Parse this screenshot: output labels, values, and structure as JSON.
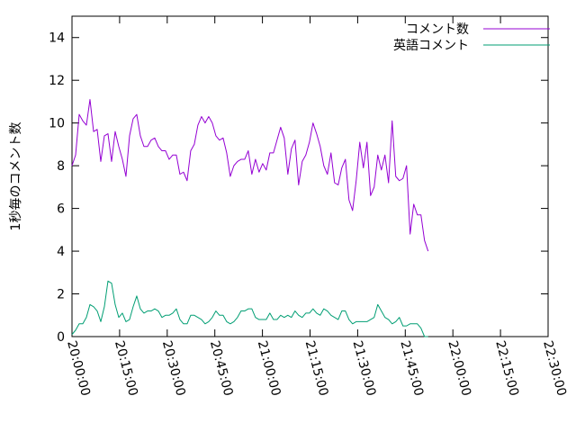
{
  "chart_data": {
    "type": "line",
    "title": "",
    "xlabel": "",
    "ylabel": "1秒毎のコメント数",
    "x_axis": {
      "type": "time",
      "range": [
        "20:00:00",
        "22:30:00"
      ],
      "ticks": [
        "20:00:00",
        "20:15:00",
        "20:30:00",
        "20:45:00",
        "21:00:00",
        "21:15:00",
        "21:30:00",
        "21:45:00",
        "22:00:00",
        "22:15:00",
        "22:30:00"
      ]
    },
    "y_axis": {
      "range": [
        0,
        15
      ],
      "ticks": [
        "0",
        "2",
        "4",
        "6",
        "8",
        "10",
        "12",
        "14"
      ]
    },
    "grid": false,
    "legend": {
      "position": "top-right"
    },
    "series": [
      {
        "name": "コメント数",
        "color": "#9400d3",
        "points": [
          [
            "20:00:00",
            8.0
          ],
          [
            "20:01:08",
            8.5
          ],
          [
            "20:02:16",
            10.4
          ],
          [
            "20:03:24",
            10.1
          ],
          [
            "20:04:32",
            9.9
          ],
          [
            "20:05:40",
            11.1
          ],
          [
            "20:06:48",
            9.6
          ],
          [
            "20:07:56",
            9.7
          ],
          [
            "20:09:04",
            8.2
          ],
          [
            "20:10:12",
            9.4
          ],
          [
            "20:11:20",
            9.5
          ],
          [
            "20:12:28",
            8.2
          ],
          [
            "20:13:36",
            9.6
          ],
          [
            "20:14:44",
            8.9
          ],
          [
            "20:15:52",
            8.3
          ],
          [
            "20:17:00",
            7.5
          ],
          [
            "20:18:08",
            9.4
          ],
          [
            "20:19:16",
            10.2
          ],
          [
            "20:20:24",
            10.4
          ],
          [
            "20:21:32",
            9.4
          ],
          [
            "20:22:40",
            8.9
          ],
          [
            "20:23:48",
            8.9
          ],
          [
            "20:24:56",
            9.2
          ],
          [
            "20:26:04",
            9.3
          ],
          [
            "20:27:12",
            8.9
          ],
          [
            "20:28:20",
            8.7
          ],
          [
            "20:29:28",
            8.7
          ],
          [
            "20:30:36",
            8.3
          ],
          [
            "20:31:44",
            8.5
          ],
          [
            "20:32:52",
            8.5
          ],
          [
            "20:34:00",
            7.6
          ],
          [
            "20:35:08",
            7.7
          ],
          [
            "20:36:16",
            7.3
          ],
          [
            "20:37:24",
            8.7
          ],
          [
            "20:38:32",
            9.0
          ],
          [
            "20:39:40",
            9.9
          ],
          [
            "20:40:48",
            10.3
          ],
          [
            "20:41:56",
            10.0
          ],
          [
            "20:43:04",
            10.3
          ],
          [
            "20:44:12",
            10.0
          ],
          [
            "20:45:20",
            9.4
          ],
          [
            "20:46:28",
            9.2
          ],
          [
            "20:47:36",
            9.3
          ],
          [
            "20:48:44",
            8.6
          ],
          [
            "20:49:52",
            7.5
          ],
          [
            "20:51:00",
            8.0
          ],
          [
            "20:52:08",
            8.2
          ],
          [
            "20:53:16",
            8.3
          ],
          [
            "20:54:24",
            8.3
          ],
          [
            "20:55:32",
            8.7
          ],
          [
            "20:56:40",
            7.6
          ],
          [
            "20:57:48",
            8.3
          ],
          [
            "20:58:56",
            7.7
          ],
          [
            "21:00:04",
            8.1
          ],
          [
            "21:01:12",
            7.8
          ],
          [
            "21:02:20",
            8.6
          ],
          [
            "21:03:28",
            8.6
          ],
          [
            "21:04:36",
            9.2
          ],
          [
            "21:05:44",
            9.8
          ],
          [
            "21:06:52",
            9.3
          ],
          [
            "21:08:00",
            7.6
          ],
          [
            "21:09:08",
            8.8
          ],
          [
            "21:10:16",
            9.2
          ],
          [
            "21:11:24",
            7.1
          ],
          [
            "21:12:32",
            8.2
          ],
          [
            "21:13:40",
            8.5
          ],
          [
            "21:14:48",
            9.1
          ],
          [
            "21:15:56",
            10.0
          ],
          [
            "21:17:04",
            9.5
          ],
          [
            "21:18:12",
            8.9
          ],
          [
            "21:19:20",
            8.0
          ],
          [
            "21:20:28",
            7.6
          ],
          [
            "21:21:36",
            8.6
          ],
          [
            "21:22:44",
            7.2
          ],
          [
            "21:23:52",
            7.1
          ],
          [
            "21:25:00",
            7.9
          ],
          [
            "21:26:08",
            8.3
          ],
          [
            "21:27:16",
            6.4
          ],
          [
            "21:28:24",
            5.9
          ],
          [
            "21:29:32",
            7.3
          ],
          [
            "21:30:40",
            9.1
          ],
          [
            "21:31:48",
            7.9
          ],
          [
            "21:32:56",
            9.1
          ],
          [
            "21:34:04",
            6.6
          ],
          [
            "21:35:12",
            7.0
          ],
          [
            "21:36:20",
            8.5
          ],
          [
            "21:37:28",
            7.8
          ],
          [
            "21:38:36",
            8.5
          ],
          [
            "21:39:44",
            7.2
          ],
          [
            "21:40:52",
            10.1
          ],
          [
            "21:42:00",
            7.5
          ],
          [
            "21:43:08",
            7.3
          ],
          [
            "21:44:16",
            7.4
          ],
          [
            "21:45:24",
            8.0
          ],
          [
            "21:46:32",
            4.8
          ],
          [
            "21:47:40",
            6.2
          ],
          [
            "21:48:48",
            5.7
          ],
          [
            "21:49:56",
            5.7
          ],
          [
            "21:51:04",
            4.5
          ],
          [
            "21:52:12",
            4.0
          ]
        ]
      },
      {
        "name": "英語コメント",
        "color": "#009e73",
        "points": [
          [
            "20:00:00",
            0.1
          ],
          [
            "20:01:08",
            0.3
          ],
          [
            "20:02:16",
            0.6
          ],
          [
            "20:03:24",
            0.6
          ],
          [
            "20:04:32",
            0.9
          ],
          [
            "20:05:40",
            1.5
          ],
          [
            "20:06:48",
            1.4
          ],
          [
            "20:07:56",
            1.2
          ],
          [
            "20:09:04",
            0.7
          ],
          [
            "20:10:12",
            1.4
          ],
          [
            "20:11:20",
            2.6
          ],
          [
            "20:12:28",
            2.5
          ],
          [
            "20:13:36",
            1.5
          ],
          [
            "20:14:44",
            0.9
          ],
          [
            "20:15:52",
            1.1
          ],
          [
            "20:17:00",
            0.7
          ],
          [
            "20:18:08",
            0.8
          ],
          [
            "20:19:16",
            1.4
          ],
          [
            "20:20:24",
            1.9
          ],
          [
            "20:21:32",
            1.3
          ],
          [
            "20:22:40",
            1.1
          ],
          [
            "20:23:48",
            1.2
          ],
          [
            "20:24:56",
            1.2
          ],
          [
            "20:26:04",
            1.3
          ],
          [
            "20:27:12",
            1.2
          ],
          [
            "20:28:20",
            0.9
          ],
          [
            "20:29:28",
            1.0
          ],
          [
            "20:30:36",
            1.0
          ],
          [
            "20:31:44",
            1.1
          ],
          [
            "20:32:52",
            1.3
          ],
          [
            "20:34:00",
            0.8
          ],
          [
            "20:35:08",
            0.6
          ],
          [
            "20:36:16",
            0.6
          ],
          [
            "20:37:24",
            1.0
          ],
          [
            "20:38:32",
            1.0
          ],
          [
            "20:39:40",
            0.9
          ],
          [
            "20:40:48",
            0.8
          ],
          [
            "20:41:56",
            0.6
          ],
          [
            "20:43:04",
            0.7
          ],
          [
            "20:44:12",
            0.9
          ],
          [
            "20:45:20",
            1.2
          ],
          [
            "20:46:28",
            1.0
          ],
          [
            "20:47:36",
            1.0
          ],
          [
            "20:48:44",
            0.7
          ],
          [
            "20:49:52",
            0.6
          ],
          [
            "20:51:00",
            0.7
          ],
          [
            "20:52:08",
            0.9
          ],
          [
            "20:53:16",
            1.2
          ],
          [
            "20:54:24",
            1.2
          ],
          [
            "20:55:32",
            1.3
          ],
          [
            "20:56:40",
            1.3
          ],
          [
            "20:57:48",
            0.9
          ],
          [
            "20:58:56",
            0.8
          ],
          [
            "21:00:04",
            0.8
          ],
          [
            "21:01:12",
            0.8
          ],
          [
            "21:02:20",
            1.1
          ],
          [
            "21:03:28",
            0.8
          ],
          [
            "21:04:36",
            0.8
          ],
          [
            "21:05:44",
            1.0
          ],
          [
            "21:06:52",
            0.9
          ],
          [
            "21:08:00",
            1.0
          ],
          [
            "21:09:08",
            0.9
          ],
          [
            "21:10:16",
            1.2
          ],
          [
            "21:11:24",
            1.0
          ],
          [
            "21:12:32",
            0.9
          ],
          [
            "21:13:40",
            1.1
          ],
          [
            "21:14:48",
            1.1
          ],
          [
            "21:15:56",
            1.3
          ],
          [
            "21:17:04",
            1.1
          ],
          [
            "21:18:12",
            1.0
          ],
          [
            "21:19:20",
            1.3
          ],
          [
            "21:20:28",
            1.2
          ],
          [
            "21:21:36",
            1.0
          ],
          [
            "21:22:44",
            0.9
          ],
          [
            "21:23:52",
            0.8
          ],
          [
            "21:25:00",
            1.2
          ],
          [
            "21:26:08",
            1.2
          ],
          [
            "21:27:16",
            0.8
          ],
          [
            "21:28:24",
            0.6
          ],
          [
            "21:29:32",
            0.7
          ],
          [
            "21:30:40",
            0.7
          ],
          [
            "21:31:48",
            0.7
          ],
          [
            "21:32:56",
            0.7
          ],
          [
            "21:34:04",
            0.8
          ],
          [
            "21:35:12",
            0.9
          ],
          [
            "21:36:20",
            1.5
          ],
          [
            "21:37:28",
            1.2
          ],
          [
            "21:38:36",
            0.9
          ],
          [
            "21:39:44",
            0.8
          ],
          [
            "21:40:52",
            0.6
          ],
          [
            "21:42:00",
            0.7
          ],
          [
            "21:43:08",
            0.9
          ],
          [
            "21:44:16",
            0.5
          ],
          [
            "21:45:24",
            0.5
          ],
          [
            "21:46:32",
            0.6
          ],
          [
            "21:47:40",
            0.6
          ],
          [
            "21:48:48",
            0.6
          ],
          [
            "21:49:56",
            0.4
          ],
          [
            "21:51:04",
            0.0
          ],
          [
            "21:52:12",
            0.0
          ]
        ]
      }
    ]
  }
}
